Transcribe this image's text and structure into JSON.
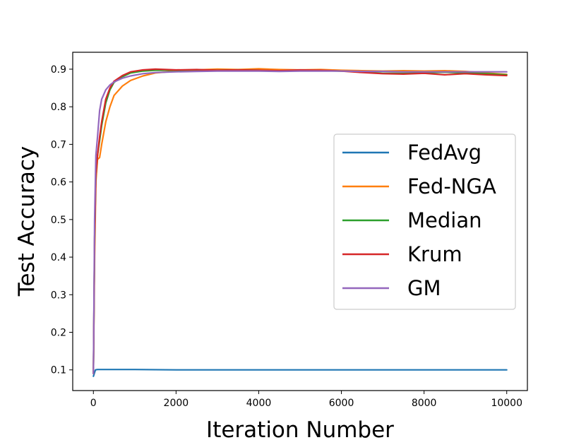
{
  "chart_data": {
    "type": "line",
    "title": "",
    "xlabel": "Iteration Number",
    "ylabel": "Test Accuracy",
    "xlim": [
      -500,
      10500
    ],
    "ylim": [
      0.045,
      0.945
    ],
    "xticks": [
      0,
      2000,
      4000,
      6000,
      8000,
      10000
    ],
    "yticks": [
      0.1,
      0.2,
      0.3,
      0.4,
      0.5,
      0.6,
      0.7,
      0.8,
      0.9
    ],
    "xtick_labels": [
      "0",
      "2000",
      "4000",
      "6000",
      "8000",
      "10000"
    ],
    "ytick_labels": [
      "0.1",
      "0.2",
      "0.3",
      "0.4",
      "0.5",
      "0.6",
      "0.7",
      "0.8",
      "0.9"
    ],
    "grid": false,
    "legend_position": "center-right",
    "series": [
      {
        "name": "FedAvg",
        "color": "#1f77b4",
        "x": [
          0,
          50,
          100,
          200,
          1000,
          2000,
          4000,
          6000,
          8000,
          10000
        ],
        "y": [
          0.083,
          0.1,
          0.101,
          0.101,
          0.101,
          0.1,
          0.1,
          0.1,
          0.1,
          0.1
        ]
      },
      {
        "name": "Fed-NGA",
        "color": "#ff7f0e",
        "x": [
          0,
          30,
          60,
          100,
          150,
          200,
          300,
          400,
          500,
          700,
          900,
          1200,
          1500,
          2000,
          2500,
          3000,
          3500,
          4000,
          4500,
          5000,
          5500,
          6000,
          6500,
          7000,
          7500,
          8000,
          8500,
          9000,
          9500,
          10000
        ],
        "y": [
          0.09,
          0.4,
          0.6,
          0.66,
          0.665,
          0.7,
          0.76,
          0.8,
          0.83,
          0.855,
          0.87,
          0.882,
          0.89,
          0.895,
          0.898,
          0.9,
          0.899,
          0.901,
          0.899,
          0.898,
          0.899,
          0.897,
          0.896,
          0.895,
          0.896,
          0.895,
          0.896,
          0.894,
          0.89,
          0.886
        ]
      },
      {
        "name": "Median",
        "color": "#2ca02c",
        "x": [
          0,
          30,
          60,
          100,
          150,
          200,
          300,
          400,
          500,
          700,
          900,
          1200,
          1500,
          2000,
          2500,
          3000,
          3500,
          4000,
          4500,
          5000,
          5500,
          6000,
          6500,
          7000,
          7500,
          8000,
          8500,
          9000,
          9500,
          10000
        ],
        "y": [
          0.09,
          0.45,
          0.62,
          0.67,
          0.71,
          0.75,
          0.81,
          0.845,
          0.865,
          0.88,
          0.89,
          0.895,
          0.897,
          0.897,
          0.898,
          0.897,
          0.898,
          0.897,
          0.895,
          0.897,
          0.896,
          0.895,
          0.893,
          0.889,
          0.889,
          0.89,
          0.892,
          0.89,
          0.888,
          0.885
        ]
      },
      {
        "name": "Krum",
        "color": "#d62728",
        "x": [
          0,
          30,
          60,
          100,
          150,
          200,
          300,
          400,
          500,
          700,
          900,
          1200,
          1500,
          2000,
          2500,
          3000,
          3500,
          4000,
          4500,
          5000,
          5500,
          6000,
          6500,
          7000,
          7500,
          8000,
          8500,
          9000,
          9500,
          10000
        ],
        "y": [
          0.09,
          0.45,
          0.62,
          0.67,
          0.72,
          0.76,
          0.82,
          0.85,
          0.868,
          0.883,
          0.893,
          0.898,
          0.9,
          0.898,
          0.899,
          0.897,
          0.898,
          0.897,
          0.896,
          0.898,
          0.897,
          0.895,
          0.891,
          0.888,
          0.887,
          0.889,
          0.885,
          0.888,
          0.885,
          0.883
        ]
      },
      {
        "name": "GM",
        "color": "#9467bd",
        "x": [
          0,
          30,
          60,
          100,
          150,
          200,
          300,
          400,
          500,
          700,
          900,
          1200,
          1500,
          2000,
          2500,
          3000,
          3500,
          4000,
          4500,
          5000,
          5500,
          6000,
          6500,
          7000,
          7500,
          8000,
          8500,
          9000,
          9500,
          10000
        ],
        "y": [
          0.09,
          0.5,
          0.67,
          0.72,
          0.79,
          0.82,
          0.845,
          0.858,
          0.866,
          0.876,
          0.882,
          0.888,
          0.891,
          0.893,
          0.894,
          0.895,
          0.895,
          0.895,
          0.894,
          0.895,
          0.895,
          0.895,
          0.894,
          0.894,
          0.893,
          0.893,
          0.893,
          0.893,
          0.893,
          0.893
        ]
      }
    ]
  }
}
